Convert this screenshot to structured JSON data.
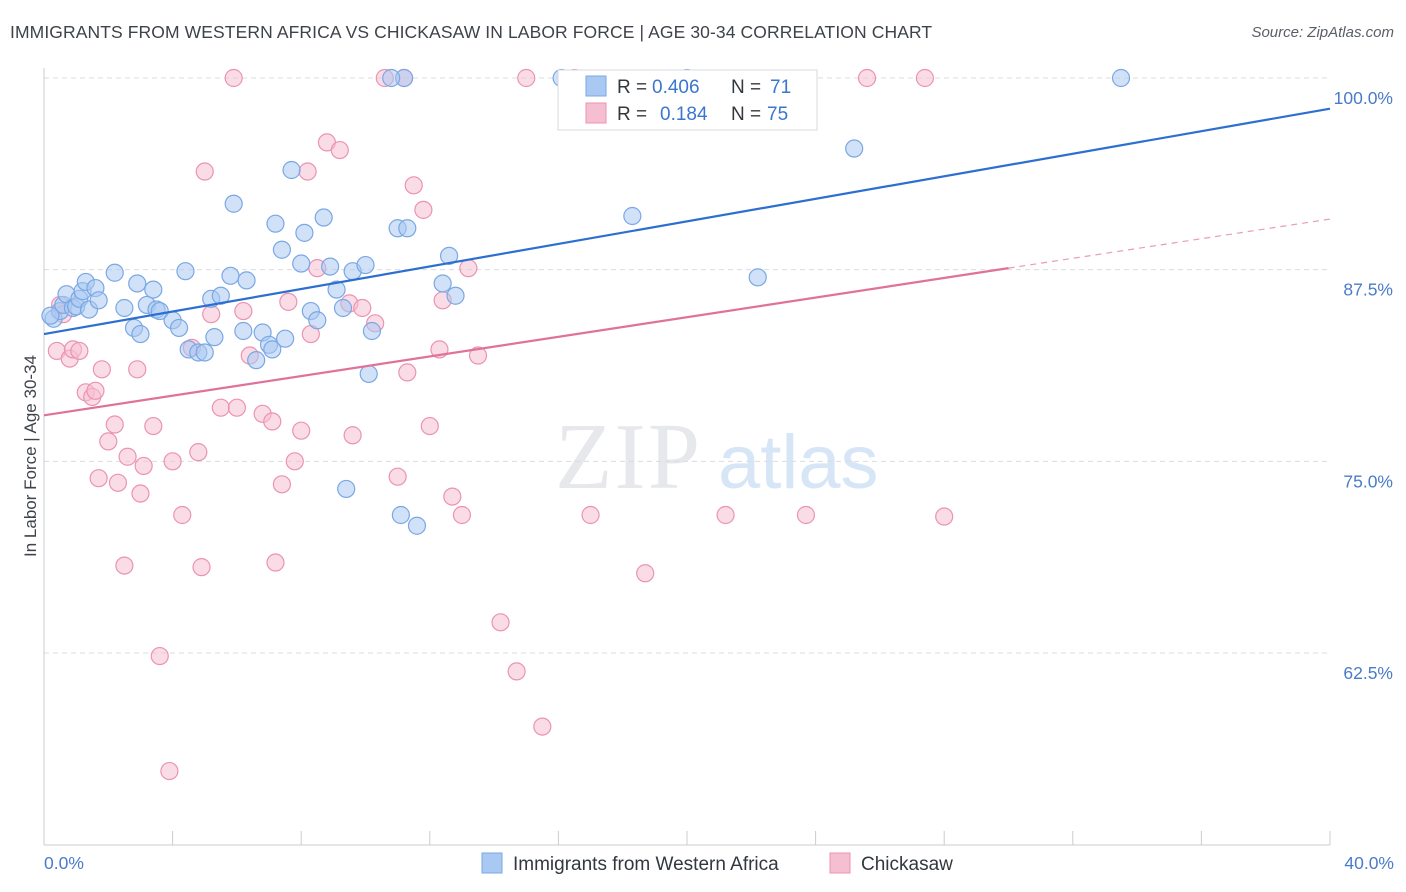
{
  "title": "IMMIGRANTS FROM WESTERN AFRICA VS CHICKASAW IN LABOR FORCE | AGE 30-34 CORRELATION CHART",
  "source": "Source: ZipAtlas.com",
  "watermark": {
    "zip": "ZIP",
    "atlas": "atlas"
  },
  "colors": {
    "blue_fill": "#a9c9f2",
    "blue_stroke": "#7aa8e3",
    "blue_line": "#2c6fd0",
    "pink_fill": "#f6bfd1",
    "pink_stroke": "#eb93b2",
    "pink_line": "#e0729a",
    "tick_text": "#4a7bc9",
    "grid": "#d9dce2"
  },
  "legend": {
    "rows": [
      {
        "r_label": "R =",
        "r_value": "0.406",
        "n_label": "N =",
        "n_value": "71"
      },
      {
        "r_label": "R =",
        "r_value": "0.184",
        "n_label": "N =",
        "n_value": "75"
      }
    ]
  },
  "bottom_legend": [
    "Immigrants from Western Africa",
    "Chickasaw"
  ],
  "chart_data": {
    "type": "scatter",
    "title": "IMMIGRANTS FROM WESTERN AFRICA VS CHICKASAW IN LABOR FORCE | AGE 30-34 CORRELATION CHART",
    "xlabel": "",
    "ylabel": "In Labor Force | Age 30-34",
    "xlim": [
      0,
      40
    ],
    "ylim": [
      50,
      100.5
    ],
    "x_tick_labels": [
      "0.0%",
      "40.0%"
    ],
    "y_ticks": [
      62.5,
      75.0,
      87.5,
      100.0
    ],
    "y_tick_labels": [
      "62.5%",
      "75.0%",
      "87.5%",
      "100.0%"
    ],
    "grid": "horizontal dashed",
    "legend_placement": "top-center",
    "series": [
      {
        "name": "Immigrants from Western Africa",
        "r": 0.406,
        "n": 71,
        "trend": {
          "x": [
            0,
            40
          ],
          "y": [
            83.3,
            98.0
          ],
          "style": "solid"
        },
        "points": [
          [
            0.3,
            84.3
          ],
          [
            0.5,
            84.8
          ],
          [
            0.6,
            85.2
          ],
          [
            0.7,
            85.9
          ],
          [
            0.9,
            85.0
          ],
          [
            1.0,
            85.1
          ],
          [
            1.1,
            85.6
          ],
          [
            1.2,
            86.1
          ],
          [
            1.3,
            86.7
          ],
          [
            1.4,
            84.9
          ],
          [
            1.6,
            86.3
          ],
          [
            1.7,
            85.5
          ],
          [
            2.2,
            87.3
          ],
          [
            2.5,
            85.0
          ],
          [
            2.8,
            83.7
          ],
          [
            2.9,
            86.6
          ],
          [
            3.2,
            85.2
          ],
          [
            3.0,
            83.3
          ],
          [
            3.4,
            86.2
          ],
          [
            3.5,
            84.9
          ],
          [
            3.6,
            84.8
          ],
          [
            4.0,
            84.2
          ],
          [
            4.2,
            83.7
          ],
          [
            4.4,
            87.4
          ],
          [
            4.5,
            82.3
          ],
          [
            4.8,
            82.1
          ],
          [
            5.0,
            82.1
          ],
          [
            5.2,
            85.6
          ],
          [
            5.3,
            83.1
          ],
          [
            5.5,
            85.8
          ],
          [
            5.8,
            87.1
          ],
          [
            5.9,
            91.8
          ],
          [
            6.2,
            83.5
          ],
          [
            6.3,
            86.8
          ],
          [
            6.6,
            81.6
          ],
          [
            6.8,
            83.4
          ],
          [
            7.0,
            82.6
          ],
          [
            7.1,
            82.3
          ],
          [
            7.2,
            90.5
          ],
          [
            7.4,
            88.8
          ],
          [
            7.7,
            94.0
          ],
          [
            7.5,
            83.0
          ],
          [
            8.0,
            87.9
          ],
          [
            8.1,
            89.9
          ],
          [
            8.3,
            84.8
          ],
          [
            8.5,
            84.2
          ],
          [
            8.7,
            90.9
          ],
          [
            8.9,
            87.7
          ],
          [
            9.1,
            86.2
          ],
          [
            9.3,
            85.0
          ],
          [
            9.6,
            87.4
          ],
          [
            10.1,
            80.7
          ],
          [
            10.2,
            83.5
          ],
          [
            10.0,
            87.8
          ],
          [
            9.4,
            73.2
          ],
          [
            11.1,
            71.5
          ],
          [
            11.0,
            90.2
          ],
          [
            11.3,
            90.2
          ],
          [
            11.2,
            100.0
          ],
          [
            11.6,
            70.8
          ],
          [
            12.4,
            86.6
          ],
          [
            12.6,
            88.4
          ],
          [
            12.8,
            85.8
          ],
          [
            10.8,
            100.0
          ],
          [
            16.1,
            100.0
          ],
          [
            18.3,
            91.0
          ],
          [
            20.0,
            100.0
          ],
          [
            25.2,
            95.4
          ],
          [
            33.5,
            100.0
          ],
          [
            22.2,
            87.0
          ],
          [
            0.2,
            84.5
          ]
        ]
      },
      {
        "name": "Chickasaw",
        "r": 0.184,
        "n": 75,
        "trend": {
          "x": [
            0,
            30
          ],
          "y": [
            78.0,
            87.6
          ],
          "x_dash_end": 40,
          "y_dash_end": 90.8,
          "style": "solid-then-dashed"
        },
        "points": [
          [
            0.4,
            82.2
          ],
          [
            0.5,
            85.2
          ],
          [
            0.6,
            84.6
          ],
          [
            0.8,
            81.7
          ],
          [
            0.9,
            82.3
          ],
          [
            1.1,
            82.2
          ],
          [
            1.3,
            79.5
          ],
          [
            1.5,
            79.2
          ],
          [
            1.6,
            79.6
          ],
          [
            1.7,
            73.9
          ],
          [
            1.8,
            81.0
          ],
          [
            2.0,
            76.3
          ],
          [
            2.2,
            77.4
          ],
          [
            2.3,
            73.6
          ],
          [
            2.5,
            68.2
          ],
          [
            2.6,
            75.3
          ],
          [
            2.9,
            81.0
          ],
          [
            3.0,
            72.9
          ],
          [
            3.1,
            74.7
          ],
          [
            3.4,
            77.3
          ],
          [
            3.6,
            62.3
          ],
          [
            3.9,
            54.8
          ],
          [
            4.0,
            75.0
          ],
          [
            4.3,
            71.5
          ],
          [
            4.6,
            82.4
          ],
          [
            4.8,
            75.6
          ],
          [
            4.9,
            68.1
          ],
          [
            5.0,
            93.9
          ],
          [
            5.2,
            84.6
          ],
          [
            5.5,
            78.5
          ],
          [
            5.9,
            100.0
          ],
          [
            6.0,
            78.5
          ],
          [
            6.2,
            84.8
          ],
          [
            6.4,
            81.9
          ],
          [
            6.8,
            78.1
          ],
          [
            7.1,
            77.6
          ],
          [
            7.2,
            68.4
          ],
          [
            7.4,
            73.5
          ],
          [
            7.6,
            85.4
          ],
          [
            7.8,
            75.0
          ],
          [
            8.0,
            77.0
          ],
          [
            8.2,
            93.9
          ],
          [
            8.3,
            83.3
          ],
          [
            8.5,
            87.6
          ],
          [
            8.8,
            95.8
          ],
          [
            9.2,
            95.3
          ],
          [
            9.5,
            85.3
          ],
          [
            9.6,
            76.7
          ],
          [
            9.9,
            85.0
          ],
          [
            10.3,
            84.0
          ],
          [
            10.6,
            100.0
          ],
          [
            11.0,
            74.0
          ],
          [
            11.3,
            80.8
          ],
          [
            11.5,
            93.0
          ],
          [
            11.8,
            91.4
          ],
          [
            12.0,
            77.3
          ],
          [
            12.3,
            82.3
          ],
          [
            12.7,
            72.7
          ],
          [
            13.0,
            71.5
          ],
          [
            13.2,
            87.6
          ],
          [
            13.5,
            81.9
          ],
          [
            11.2,
            100.0
          ],
          [
            14.2,
            64.5
          ],
          [
            14.7,
            61.3
          ],
          [
            15.0,
            100.0
          ],
          [
            15.5,
            57.7
          ],
          [
            16.5,
            100.0
          ],
          [
            17.0,
            71.5
          ],
          [
            18.7,
            67.7
          ],
          [
            21.2,
            71.5
          ],
          [
            23.7,
            71.5
          ],
          [
            25.6,
            100.0
          ],
          [
            27.4,
            100.0
          ],
          [
            28.0,
            71.4
          ],
          [
            12.4,
            85.5
          ]
        ]
      }
    ]
  }
}
